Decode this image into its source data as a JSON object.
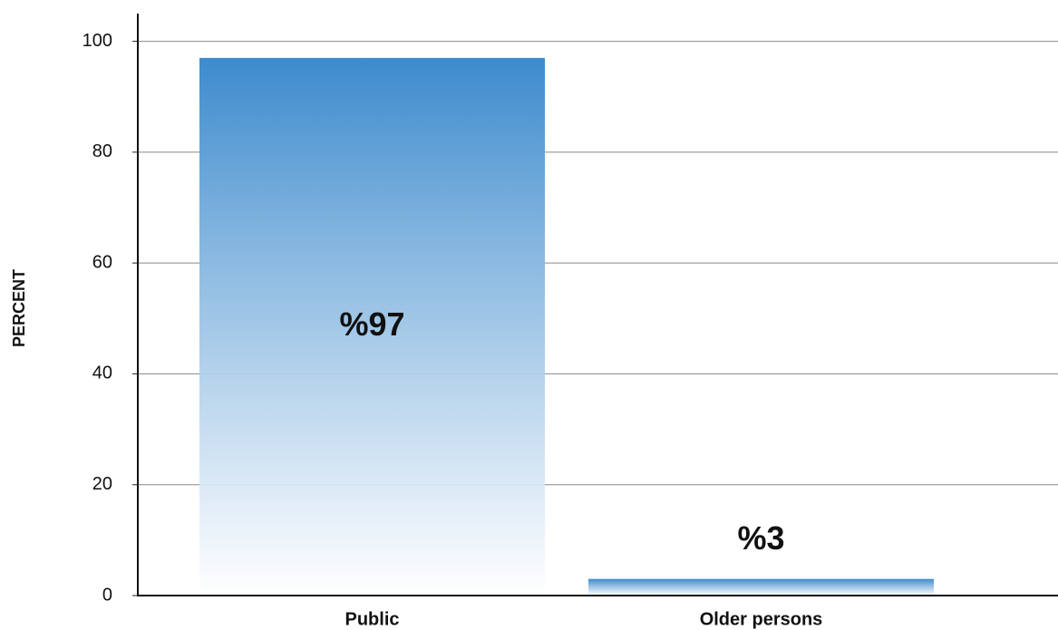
{
  "chart_data": {
    "type": "bar",
    "y_label": "PERCENT",
    "categories": [
      "Public",
      "Older persons"
    ],
    "values": [
      97,
      3
    ],
    "value_labels": [
      "%97",
      "%3"
    ],
    "color": "#3d8bcd",
    "ylim": [
      0,
      105
    ],
    "yticks": [
      0,
      20,
      40,
      60,
      80,
      100
    ],
    "grid": true
  }
}
